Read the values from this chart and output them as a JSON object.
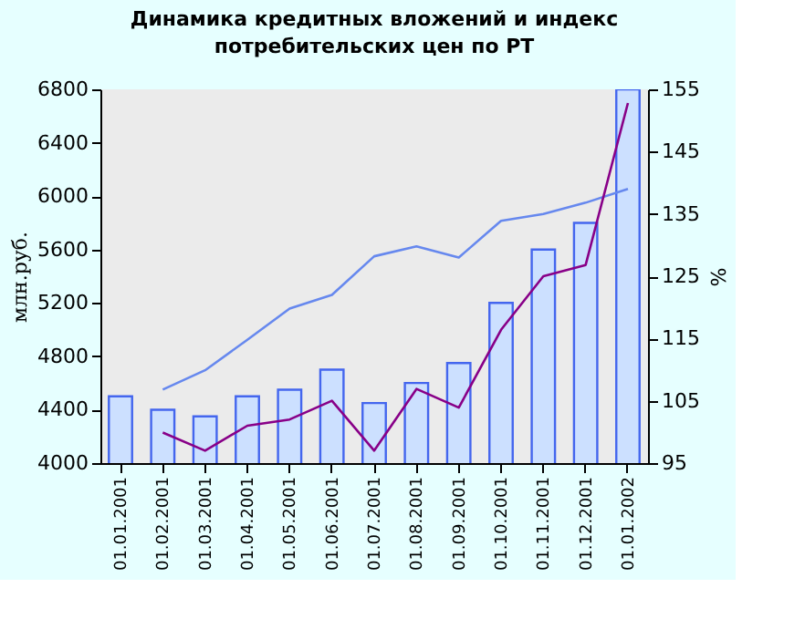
{
  "chart_data": {
    "type": "bar",
    "title": "Динамика кредитных вложений и индекс потребительских цен по РТ",
    "categories": [
      "01.01.2001",
      "01.02.2001",
      "01.03.2001",
      "01.04.2001",
      "01.05.2001",
      "01.06.2001",
      "01.07.2001",
      "01.08.2001",
      "01.09.2001",
      "01.10.2001",
      "01.11.2001",
      "01.12.2001",
      "01.01.2002"
    ],
    "ylabel": "млн.руб.",
    "y2label": "%",
    "ylim": [
      4000,
      6800
    ],
    "yticks": [
      4000,
      4400,
      4800,
      5200,
      5600,
      6000,
      6400,
      6800
    ],
    "y2lim": [
      95,
      155
    ],
    "y2ticks": [
      95,
      105,
      115,
      125,
      135,
      145,
      155
    ],
    "series": [
      {
        "color": "#cce0ff",
        "values": [
          4500,
          4400,
          4350,
          4500,
          4550,
          4700,
          4450,
          4600,
          4750,
          5200,
          5600,
          5800,
          6800
        ]
      },
      {
        "type": "line",
        "axis": "y2",
        "color": "#6688ee",
        "values": [
          null,
          106.8,
          109.9,
          114.8,
          119.8,
          122,
          128.2,
          129.8,
          128,
          133.9,
          135,
          136.8,
          139
        ]
      },
      {
        "type": "line",
        "axis": "y2",
        "color": "#880088",
        "values": [
          null,
          99.9,
          97,
          101,
          102,
          105,
          97,
          106.9,
          103.9,
          116.4,
          125,
          126.8,
          152.8
        ]
      }
    ],
    "grid": false
  }
}
